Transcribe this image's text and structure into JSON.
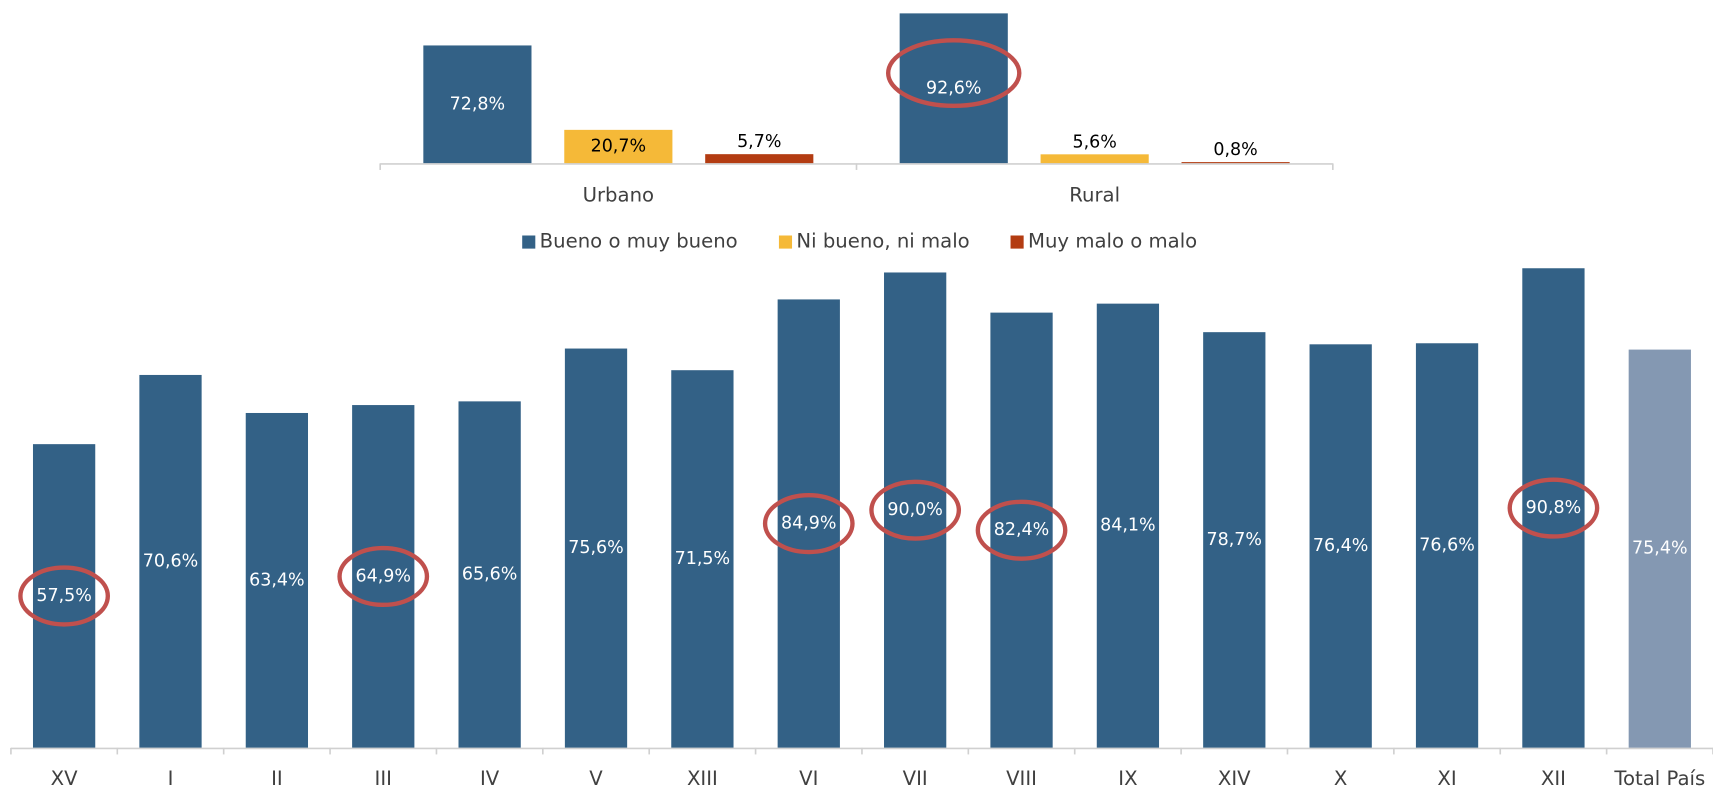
{
  "chart_data": [
    {
      "type": "bar",
      "categories": [
        "Urbano",
        "Rural"
      ],
      "series": [
        {
          "name": "Bueno o muy bueno",
          "color": "#336186",
          "values": [
            72.8,
            92.6
          ],
          "value_labels": [
            "72,8%",
            "92,6%"
          ]
        },
        {
          "name": "Ni bueno, ni malo",
          "color": "#f5b938",
          "values": [
            20.7,
            5.6
          ],
          "value_labels": [
            "20,7%",
            "5,6%"
          ]
        },
        {
          "name": "Muy malo o malo",
          "color": "#b33c12",
          "values": [
            5.7,
            0.8
          ],
          "value_labels": [
            "5,7%",
            "0,8%"
          ]
        }
      ],
      "ylim": [
        0,
        100
      ],
      "legend": "bottom"
    },
    {
      "type": "bar",
      "categories": [
        "XV",
        "I",
        "II",
        "III",
        "IV",
        "V",
        "XIII",
        "VI",
        "VII",
        "VIII",
        "IX",
        "XIV",
        "X",
        "XI",
        "XII",
        "Total País"
      ],
      "values": [
        57.5,
        70.6,
        63.4,
        64.9,
        65.6,
        75.6,
        71.5,
        84.9,
        90.0,
        82.4,
        84.1,
        78.7,
        76.4,
        76.6,
        90.8,
        75.4
      ],
      "value_labels": [
        "57,5%",
        "70,6%",
        "63,4%",
        "64,9%",
        "65,6%",
        "75,6%",
        "71,5%",
        "84,9%",
        "90,0%",
        "82,4%",
        "84,1%",
        "78,7%",
        "76,4%",
        "76,6%",
        "90,8%",
        "75,4%"
      ],
      "colors": [
        "#336186",
        "#336186",
        "#336186",
        "#336186",
        "#336186",
        "#336186",
        "#336186",
        "#336186",
        "#336186",
        "#336186",
        "#336186",
        "#336186",
        "#336186",
        "#336186",
        "#336186",
        "#8498b2"
      ],
      "ylim": [
        0,
        100
      ]
    }
  ]
}
